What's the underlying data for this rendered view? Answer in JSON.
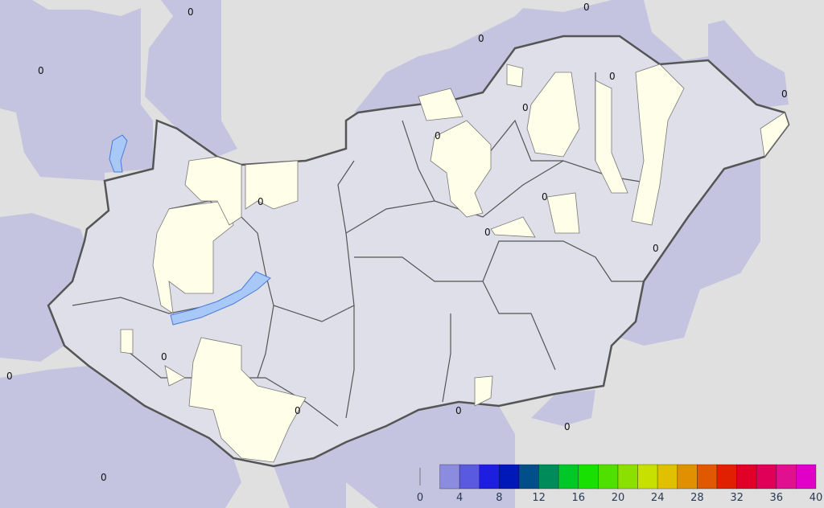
{
  "map": {
    "contour_label": "0",
    "colors": {
      "background": "#e0e0e0",
      "outside_region": "#c4c4e0",
      "country_fill": "#dfdfea",
      "zero_area": "#fffee8",
      "lake": "#a8c8f8",
      "border": "#555555"
    }
  },
  "legend": {
    "ticks": [
      "0",
      "4",
      "8",
      "12",
      "16",
      "20",
      "24",
      "28",
      "32",
      "36",
      "40"
    ],
    "bins": [
      {
        "from": 0,
        "to": 2,
        "color": "transparent"
      },
      {
        "from": 2,
        "to": 4,
        "color": "#8b8be0"
      },
      {
        "from": 4,
        "to": 6,
        "color": "#5a5ae0"
      },
      {
        "from": 6,
        "to": 8,
        "color": "#1e1ee0"
      },
      {
        "from": 8,
        "to": 10,
        "color": "#0018b8"
      },
      {
        "from": 10,
        "to": 12,
        "color": "#004f8a"
      },
      {
        "from": 12,
        "to": 14,
        "color": "#008c5a"
      },
      {
        "from": 14,
        "to": 16,
        "color": "#00c828"
      },
      {
        "from": 16,
        "to": 18,
        "color": "#18e000"
      },
      {
        "from": 18,
        "to": 20,
        "color": "#50e000"
      },
      {
        "from": 20,
        "to": 22,
        "color": "#8ce000"
      },
      {
        "from": 22,
        "to": 24,
        "color": "#c8e000"
      },
      {
        "from": 24,
        "to": 26,
        "color": "#e0c000"
      },
      {
        "from": 26,
        "to": 28,
        "color": "#e09000"
      },
      {
        "from": 28,
        "to": 30,
        "color": "#e05800"
      },
      {
        "from": 30,
        "to": 32,
        "color": "#e02000"
      },
      {
        "from": 32,
        "to": 34,
        "color": "#e00028"
      },
      {
        "from": 34,
        "to": 36,
        "color": "#e00058"
      },
      {
        "from": 36,
        "to": 38,
        "color": "#e01090"
      },
      {
        "from": 38,
        "to": 40,
        "color": "#e000c8"
      }
    ]
  }
}
